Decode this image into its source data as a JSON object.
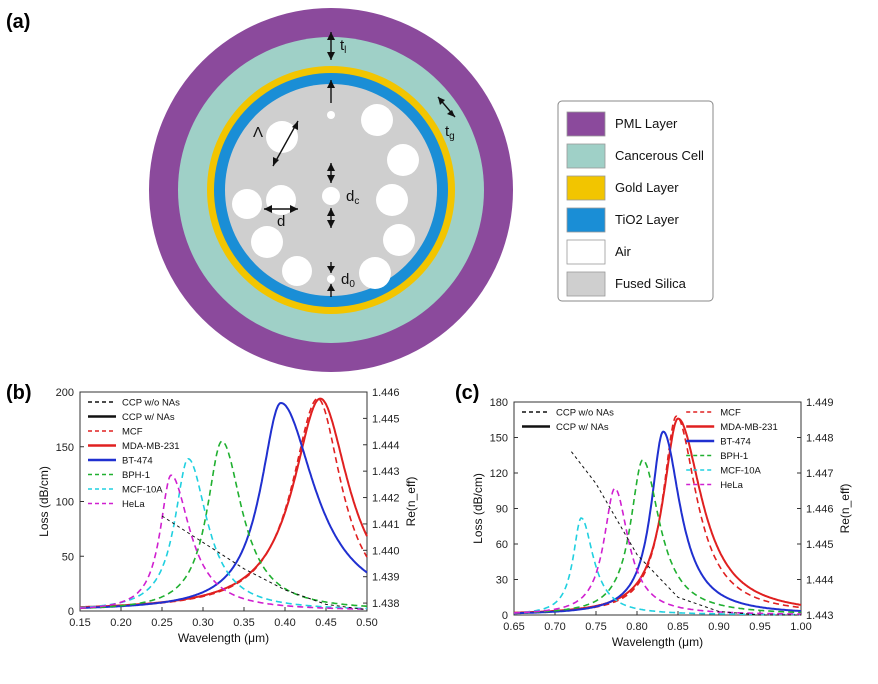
{
  "panels": {
    "a": "(a)",
    "b": "(b)",
    "c": "(c)"
  },
  "cross_section": {
    "legend": [
      {
        "label": "PML Layer",
        "color": "#8b4a9c"
      },
      {
        "label": "Cancerous Cell",
        "color": "#9fd0c7"
      },
      {
        "label": "Gold Layer",
        "color": "#f2c500"
      },
      {
        "label": "TiO2 Layer",
        "color": "#1a8ed6"
      },
      {
        "label": "Air",
        "color": "#ffffff"
      },
      {
        "label": "Fused Silica",
        "color": "#cfcfcf"
      }
    ],
    "labels": {
      "tl": "t",
      "tl_sub": "l",
      "tg": "t",
      "tg_sub": "g",
      "lambda": "Λ",
      "d": "d",
      "dc": "d",
      "dc_sub": "c",
      "d0": "d",
      "d0_sub": "0"
    }
  },
  "chart_data": [
    {
      "type": "line",
      "panel": "(b)",
      "xlabel": "Wavelength (μm)",
      "ylabel": "Loss (dB/cm)",
      "y2label": "Re(n_eff)",
      "xlim": [
        0.15,
        0.5
      ],
      "ylim": [
        0,
        200
      ],
      "y2lim": [
        1.4377,
        1.446
      ],
      "xticks": [
        "0.15",
        "0.20",
        "0.25",
        "0.30",
        "0.35",
        "0.40",
        "0.45",
        "0.50"
      ],
      "yticks": [
        "0",
        "50",
        "100",
        "150",
        "200"
      ],
      "y2ticks": [
        "1.438",
        "1.439",
        "1.440",
        "1.441",
        "1.442",
        "1.443",
        "1.444",
        "1.445",
        "1.446"
      ],
      "legend_placement": "top-left",
      "legend": [
        "CCP w/o NAs",
        "CCP w/ NAs",
        "MCF",
        "MDA-MB-231",
        "BT-474",
        "BPH-1",
        "MCF-10A",
        "HeLa"
      ],
      "series": [
        {
          "name": "MCF",
          "color": "#e02020",
          "dash": true,
          "peak": 0.44,
          "height": 194,
          "width_left": 0.038,
          "width_right": 0.035
        },
        {
          "name": "MDA-MB-231",
          "color": "#e02020",
          "dash": false,
          "peak": 0.443,
          "height": 194,
          "width_left": 0.04,
          "width_right": 0.042
        },
        {
          "name": "BT-474",
          "color": "#2030d0",
          "dash": false,
          "peak": 0.395,
          "height": 190,
          "width_left": 0.03,
          "width_right": 0.05
        },
        {
          "name": "BPH-1",
          "color": "#20b030",
          "dash": true,
          "peak": 0.323,
          "height": 155,
          "width_left": 0.022,
          "width_right": 0.03
        },
        {
          "name": "MCF-10A",
          "color": "#20d0e0",
          "dash": true,
          "peak": 0.282,
          "height": 139,
          "width_left": 0.02,
          "width_right": 0.028
        },
        {
          "name": "HeLa",
          "color": "#d020d0",
          "dash": true,
          "peak": 0.261,
          "height": 124,
          "width_left": 0.016,
          "width_right": 0.028
        }
      ],
      "neff_line": {
        "name": "CCP w/o NAs",
        "x": [
          0.25,
          0.3,
          0.35,
          0.4,
          0.45,
          0.5
        ],
        "y": [
          1.4413,
          1.4403,
          1.4393,
          1.4385,
          1.43795,
          1.43775
        ]
      }
    },
    {
      "type": "line",
      "panel": "(c)",
      "xlabel": "Wavelength (μm)",
      "ylabel": "Loss (dB/cm)",
      "y2label": "Re(n_eff)",
      "xlim": [
        0.65,
        1.0
      ],
      "ylim": [
        0,
        180
      ],
      "y2lim": [
        1.443,
        1.449
      ],
      "xticks": [
        "0.65",
        "0.70",
        "0.75",
        "0.80",
        "0.85",
        "0.90",
        "0.95",
        "1.00"
      ],
      "yticks": [
        "0",
        "30",
        "60",
        "90",
        "120",
        "150",
        "180"
      ],
      "y2ticks": [
        "1.443",
        "1.444",
        "1.445",
        "1.446",
        "1.447",
        "1.448",
        "1.449"
      ],
      "legend_placement": "top",
      "legend": [
        "CCP w/o NAs",
        "CCP w/ NAs",
        "MCF",
        "MDA-MB-231",
        "BT-474",
        "BPH-1",
        "MCF-10A",
        "HeLa"
      ],
      "series": [
        {
          "name": "MCF",
          "color": "#e02020",
          "dash": true,
          "peak": 0.848,
          "height": 168,
          "width_left": 0.02,
          "width_right": 0.03
        },
        {
          "name": "MDA-MB-231",
          "color": "#e02020",
          "dash": false,
          "peak": 0.85,
          "height": 166,
          "width_left": 0.022,
          "width_right": 0.035
        },
        {
          "name": "BT-474",
          "color": "#2030d0",
          "dash": false,
          "peak": 0.832,
          "height": 155,
          "width_left": 0.018,
          "width_right": 0.025
        },
        {
          "name": "BPH-1",
          "color": "#20b030",
          "dash": true,
          "peak": 0.807,
          "height": 131,
          "width_left": 0.018,
          "width_right": 0.025
        },
        {
          "name": "MCF-10A",
          "color": "#20d0e0",
          "dash": true,
          "peak": 0.732,
          "height": 82,
          "width_left": 0.012,
          "width_right": 0.018
        },
        {
          "name": "HeLa",
          "color": "#d020d0",
          "dash": true,
          "peak": 0.773,
          "height": 107,
          "width_left": 0.016,
          "width_right": 0.02
        }
      ],
      "neff_line": {
        "name": "CCP w/o NAs",
        "x": [
          0.72,
          0.75,
          0.8,
          0.85,
          0.9,
          0.95,
          1.0
        ],
        "y": [
          1.4476,
          1.4467,
          1.4447,
          1.4435,
          1.4431,
          1.443,
          1.443
        ]
      }
    }
  ]
}
